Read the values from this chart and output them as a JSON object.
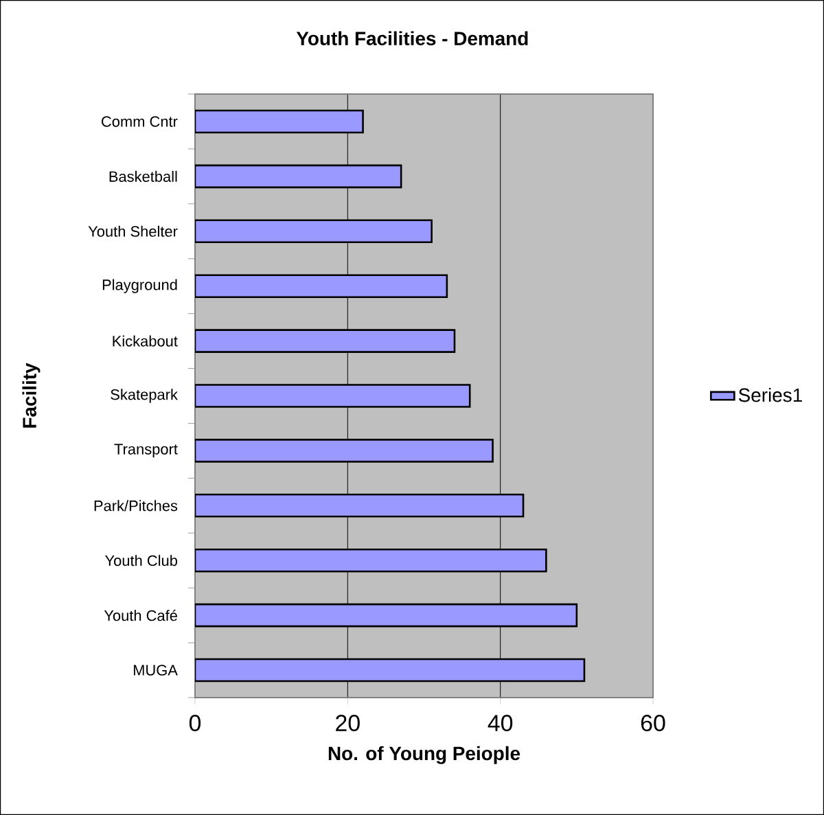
{
  "chart_data": {
    "type": "bar",
    "orientation": "horizontal",
    "title": "Youth Facilities - Demand",
    "xlabel": "No. of Young Peiople",
    "ylabel": "Facility",
    "categories": [
      "Comm Cntr",
      "Basketball",
      "Youth Shelter",
      "Playground",
      "Kickabout",
      "Skatepark",
      "Transport",
      "Park/Pitches",
      "Youth Club",
      "Youth Café",
      "MUGA"
    ],
    "series": [
      {
        "name": "Series1",
        "color": "#9999ff",
        "values": [
          22,
          27,
          31,
          33,
          34,
          36,
          39,
          43,
          46,
          50,
          51
        ]
      }
    ],
    "xlim": [
      0,
      60
    ],
    "xticks": [
      0,
      20,
      40,
      60
    ],
    "grid": "x",
    "legend": "right"
  }
}
